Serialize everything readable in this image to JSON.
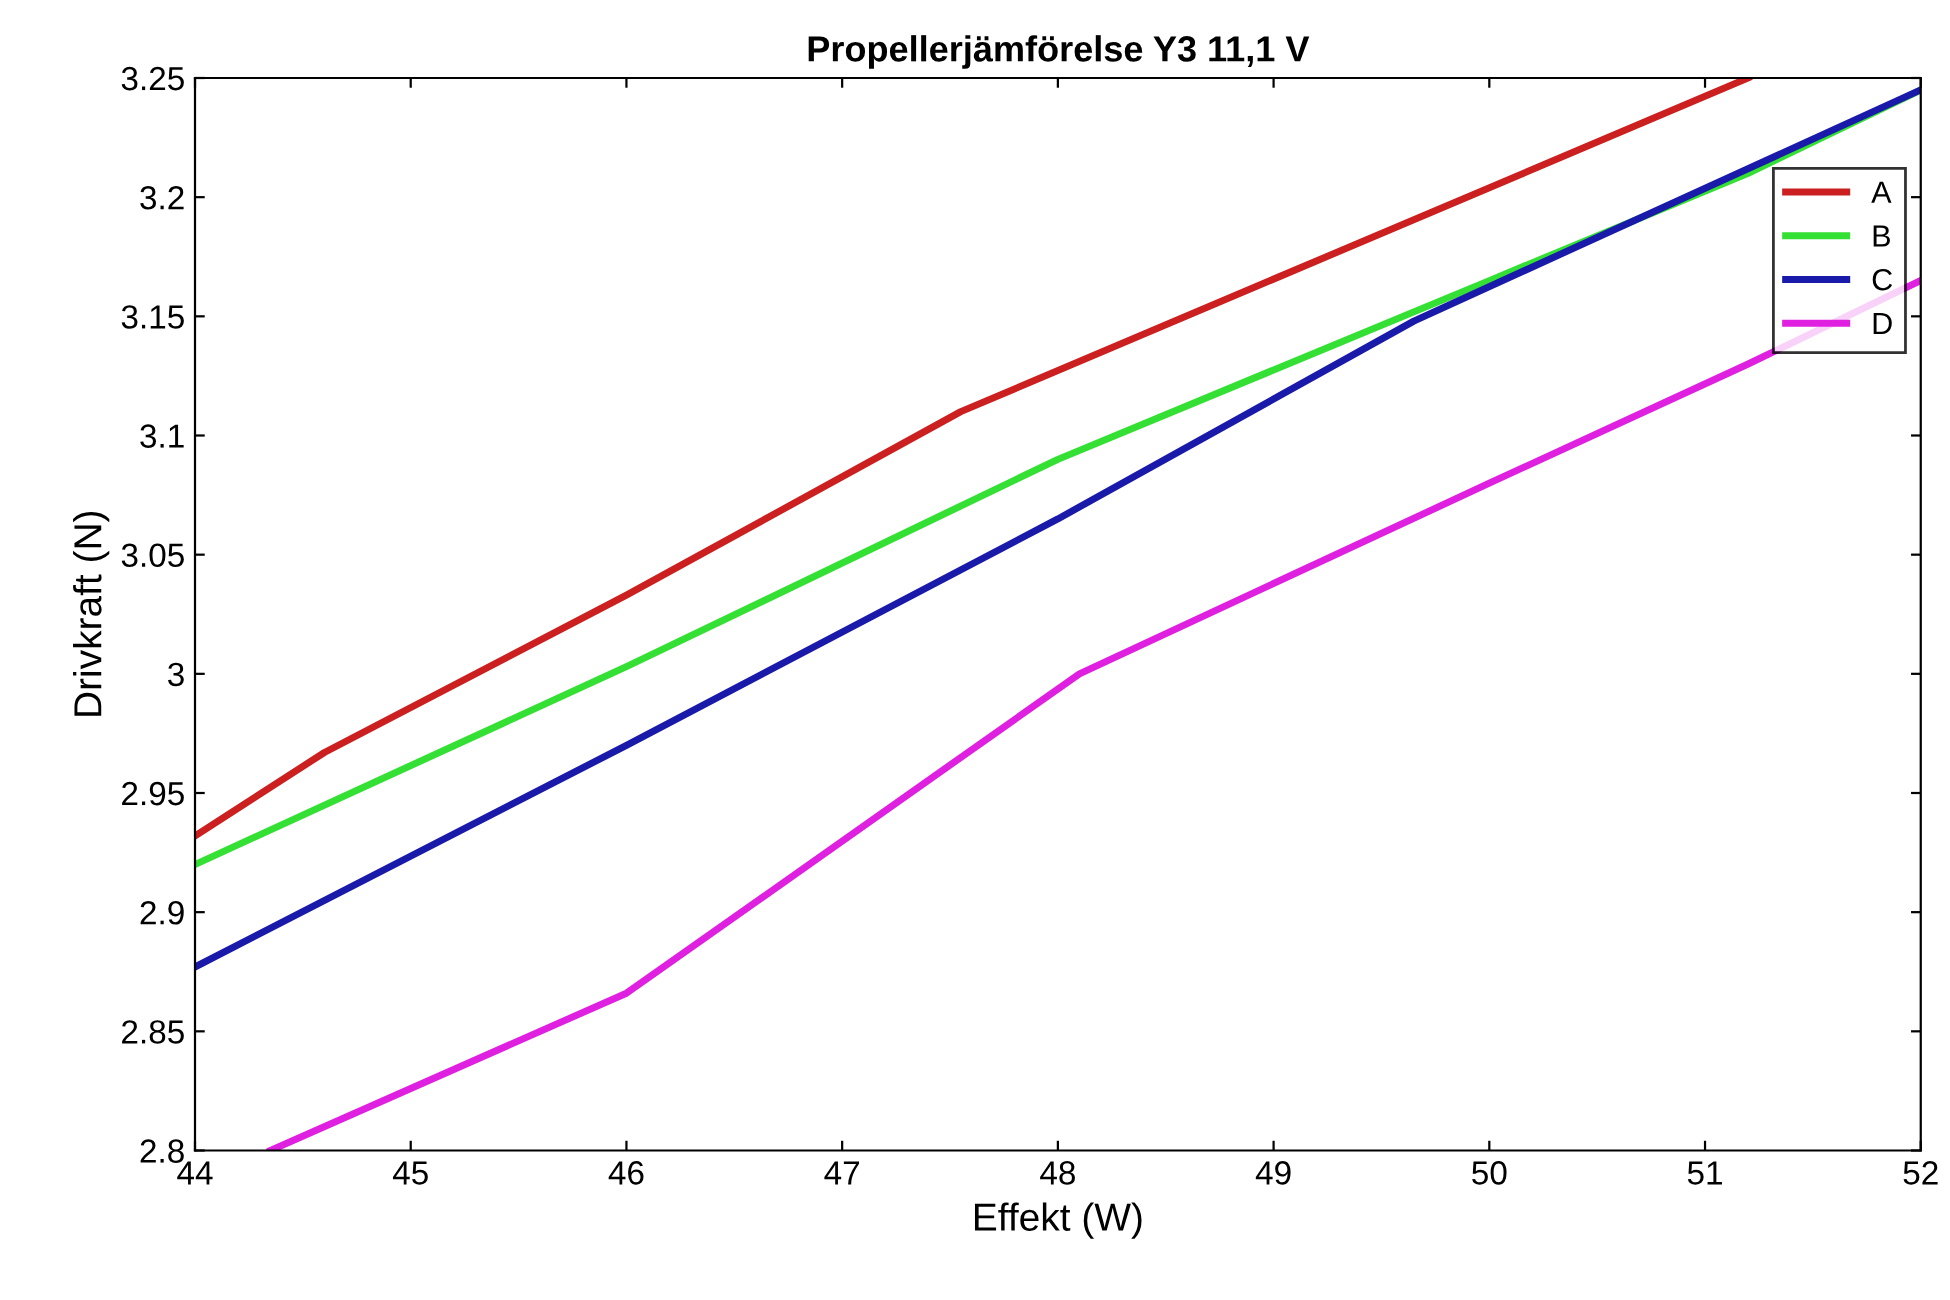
{
  "chart_data": {
    "type": "line",
    "title": "Propellerjämförelse Y3 11,1 V",
    "xlabel": "Effekt (W)",
    "ylabel": "Drivkraft (N)",
    "xlim": [
      44,
      52
    ],
    "xticks": [
      44,
      45,
      46,
      47,
      48,
      49,
      50,
      51,
      52
    ],
    "ylim": [
      2.8,
      3.25
    ],
    "yticks": [
      2.8,
      2.85,
      2.9,
      2.95,
      3,
      3.05,
      3.1,
      3.15,
      3.2,
      3.25
    ],
    "legend": "top right",
    "grid": false,
    "marker": "none",
    "line_style": "solid",
    "series": [
      {
        "name": "A",
        "color": "#cc1f1f",
        "x": [
          44,
          44.6,
          46,
          47.55,
          51.2
        ],
        "values": [
          2.932,
          2.967,
          3.033,
          3.11,
          3.25
        ]
      },
      {
        "name": "B",
        "color": "#33e033",
        "x": [
          44,
          46,
          48,
          50,
          51.2,
          52
        ],
        "values": [
          2.92,
          3.003,
          3.09,
          3.165,
          3.21,
          3.245
        ]
      },
      {
        "name": "C",
        "color": "#1a1aaa",
        "x": [
          44,
          46,
          48,
          49.65,
          52
        ],
        "values": [
          2.877,
          2.97,
          3.065,
          3.148,
          3.245
        ]
      },
      {
        "name": "D",
        "color": "#e020e0",
        "x": [
          44.35,
          46,
          48.1,
          50,
          51.2,
          52
        ],
        "values": [
          2.8,
          2.866,
          3.0,
          3.08,
          3.13,
          3.165
        ]
      }
    ]
  }
}
